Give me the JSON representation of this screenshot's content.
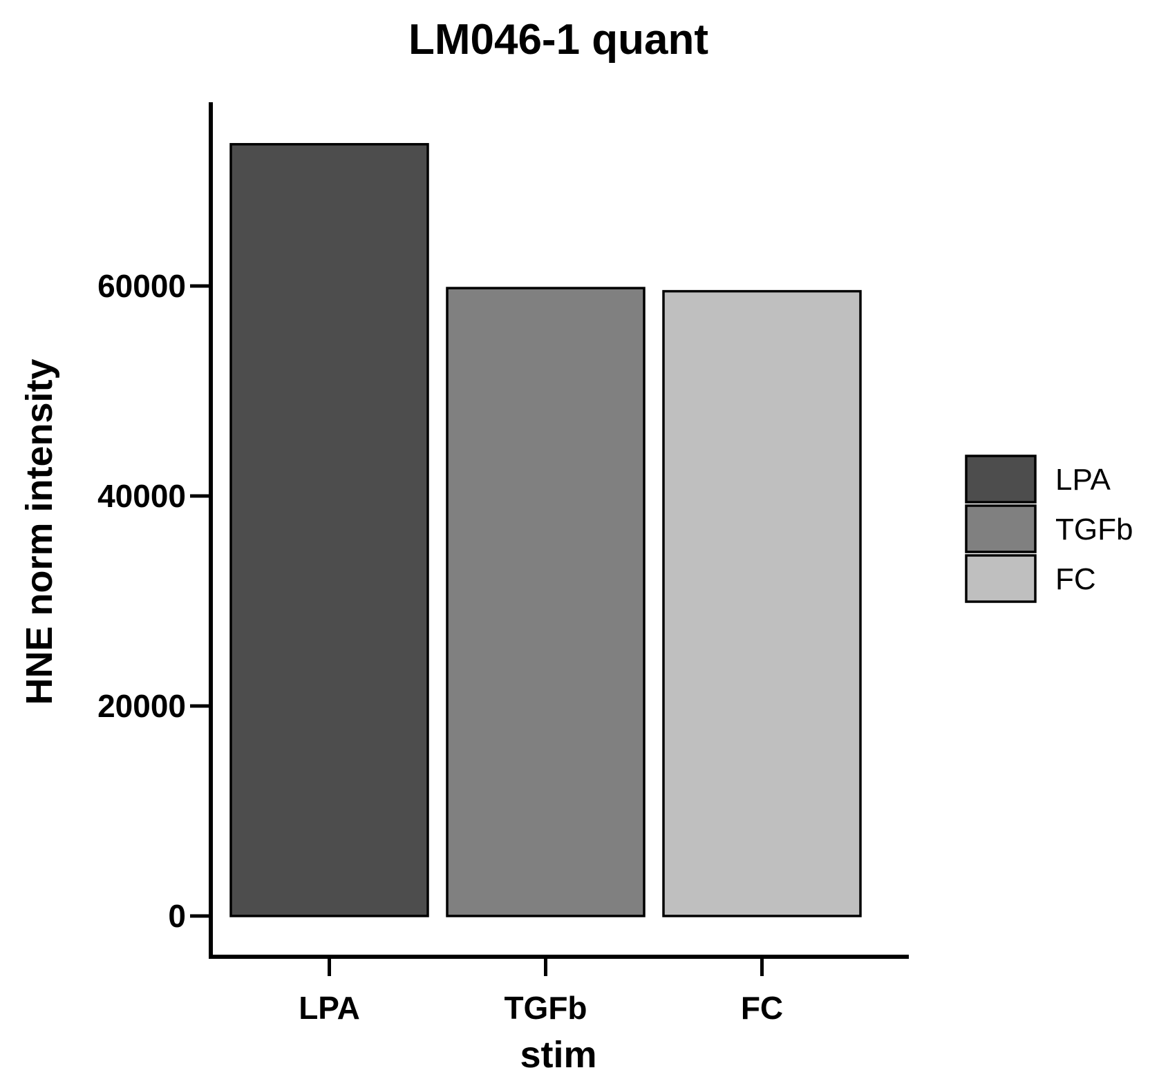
{
  "chart_data": {
    "type": "bar",
    "title": "LM046-1 quant",
    "xlabel": "stim",
    "ylabel": "HNE norm intensity",
    "categories": [
      "LPA",
      "TGFb",
      "FC"
    ],
    "values": [
      73500,
      59800,
      59500
    ],
    "colors": [
      "#4d4d4d",
      "#808080",
      "#bfbfbf"
    ],
    "ylim": [
      -3700,
      77000
    ],
    "yticks": [
      0,
      20000,
      40000,
      60000
    ],
    "ytick_labels": [
      "0",
      "20000",
      "40000",
      "60000"
    ],
    "grid": false,
    "legend": {
      "position": "right",
      "entries": [
        "LPA",
        "TGFb",
        "FC"
      ]
    }
  }
}
